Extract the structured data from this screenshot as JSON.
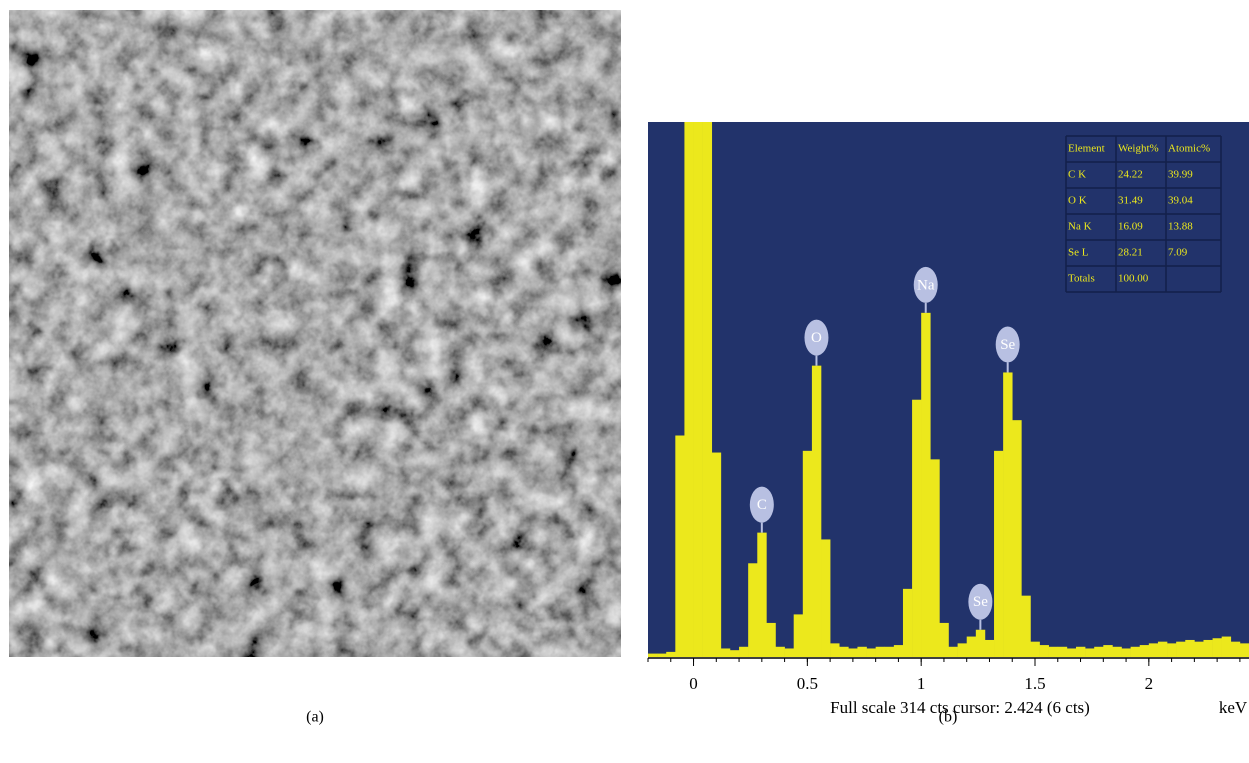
{
  "panels": {
    "a": "(a)",
    "b": "(b)"
  },
  "chart_data": {
    "type": "histogram",
    "bins": [
      -0.2,
      -0.16,
      -0.12,
      -0.08,
      -0.04,
      0,
      0.04,
      0.08,
      0.12,
      0.16,
      0.2,
      0.24,
      0.28,
      0.32,
      0.36,
      0.4,
      0.44,
      0.48,
      0.52,
      0.56,
      0.6,
      0.64,
      0.68,
      0.72,
      0.76,
      0.8,
      0.84,
      0.88,
      0.92,
      0.96,
      1,
      1.04,
      1.08,
      1.12,
      1.16,
      1.2,
      1.24,
      1.28,
      1.32,
      1.36,
      1.4,
      1.44,
      1.48,
      1.52,
      1.56,
      1.6,
      1.64,
      1.68,
      1.72,
      1.76,
      1.8,
      1.84,
      1.88,
      1.92,
      1.96,
      2,
      2.04,
      2.08,
      2.12,
      2.16,
      2.2,
      2.24,
      2.28,
      2.32,
      2.36,
      2.4,
      2.44
    ],
    "values": [
      2,
      2,
      3,
      130,
      314,
      314,
      314,
      120,
      5,
      4,
      6,
      55,
      73,
      20,
      6,
      5,
      25,
      121,
      171,
      69,
      8,
      6,
      5,
      6,
      5,
      6,
      6,
      7,
      40,
      151,
      202,
      116,
      20,
      6,
      8,
      12,
      16,
      10,
      121,
      167,
      139,
      36,
      9,
      7,
      6,
      6,
      5,
      6,
      5,
      6,
      7,
      6,
      5,
      6,
      7,
      8,
      9,
      8,
      9,
      10,
      9,
      10,
      11,
      12,
      9,
      8
    ],
    "color": "#ece81c",
    "background": "#22336b",
    "xlim": [
      -0.2,
      2.44
    ],
    "ylim": [
      0,
      314
    ],
    "xticks": [
      0,
      0.5,
      1,
      1.5,
      2
    ],
    "xminorticks": [
      -0.2,
      -0.1,
      0,
      0.1,
      0.2,
      0.3,
      0.4,
      0.5,
      0.6,
      0.7,
      0.8,
      0.9,
      1,
      1.1,
      1.2,
      1.3,
      1.4,
      1.5,
      1.6,
      1.7,
      1.8,
      1.9,
      2,
      2.1,
      2.2,
      2.3,
      2.4
    ],
    "xlabel": "keV",
    "footer": "Full scale 314 cts cursor: 2.424 (6 cts)",
    "annotations": [
      {
        "text": "C",
        "x": 0.3
      },
      {
        "text": "O",
        "x": 0.54
      },
      {
        "text": "Na",
        "x": 1.02
      },
      {
        "text": "Se",
        "x": 1.26
      },
      {
        "text": "Se",
        "x": 1.38
      }
    ],
    "table": {
      "header": [
        "Element",
        "Weight%",
        "Atomic%"
      ],
      "rows": [
        [
          "C K",
          "24.22",
          "39.99"
        ],
        [
          "O K",
          "31.49",
          "39.04"
        ],
        [
          "Na K",
          "16.09",
          "13.88"
        ],
        [
          "Se L",
          "28.21",
          "7.09"
        ],
        [
          "Totals",
          "100.00"
        ]
      ]
    }
  }
}
